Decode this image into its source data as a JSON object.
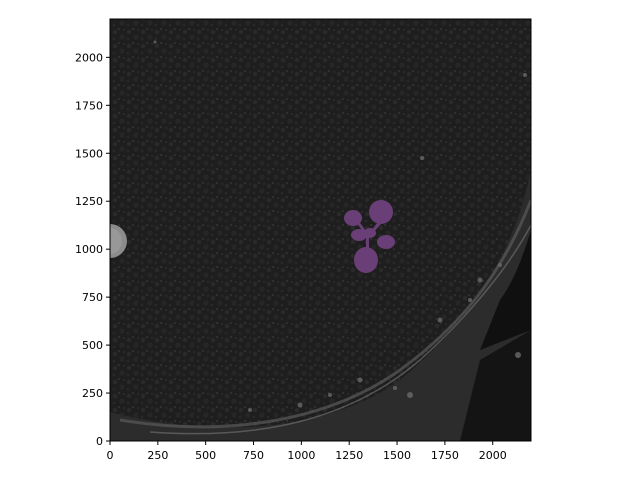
{
  "figure": {
    "type": "image-with-axes",
    "x_axis": {
      "min": 0,
      "max": 2200,
      "ticks": [
        0,
        250,
        500,
        750,
        1000,
        1250,
        1500,
        1750,
        2000
      ],
      "tick_labels": [
        "0",
        "250",
        "500",
        "750",
        "1000",
        "1250",
        "1500",
        "1750",
        "2000"
      ]
    },
    "y_axis": {
      "min": 0,
      "max": 2200,
      "ticks": [
        0,
        250,
        500,
        750,
        1000,
        1250,
        1500,
        1750,
        2000
      ],
      "tick_labels": [
        "0",
        "250",
        "500",
        "750",
        "1000",
        "1250",
        "1500",
        "1750",
        "2000"
      ]
    },
    "image": {
      "description_colors": {
        "soil_dark": "#1d1d1d",
        "soil_light": "#3a3a3a",
        "plant_mask": "#6a3f77",
        "pot_edge": "#8c8c8c"
      },
      "plant_center_data": [
        1360,
        1060
      ]
    }
  }
}
